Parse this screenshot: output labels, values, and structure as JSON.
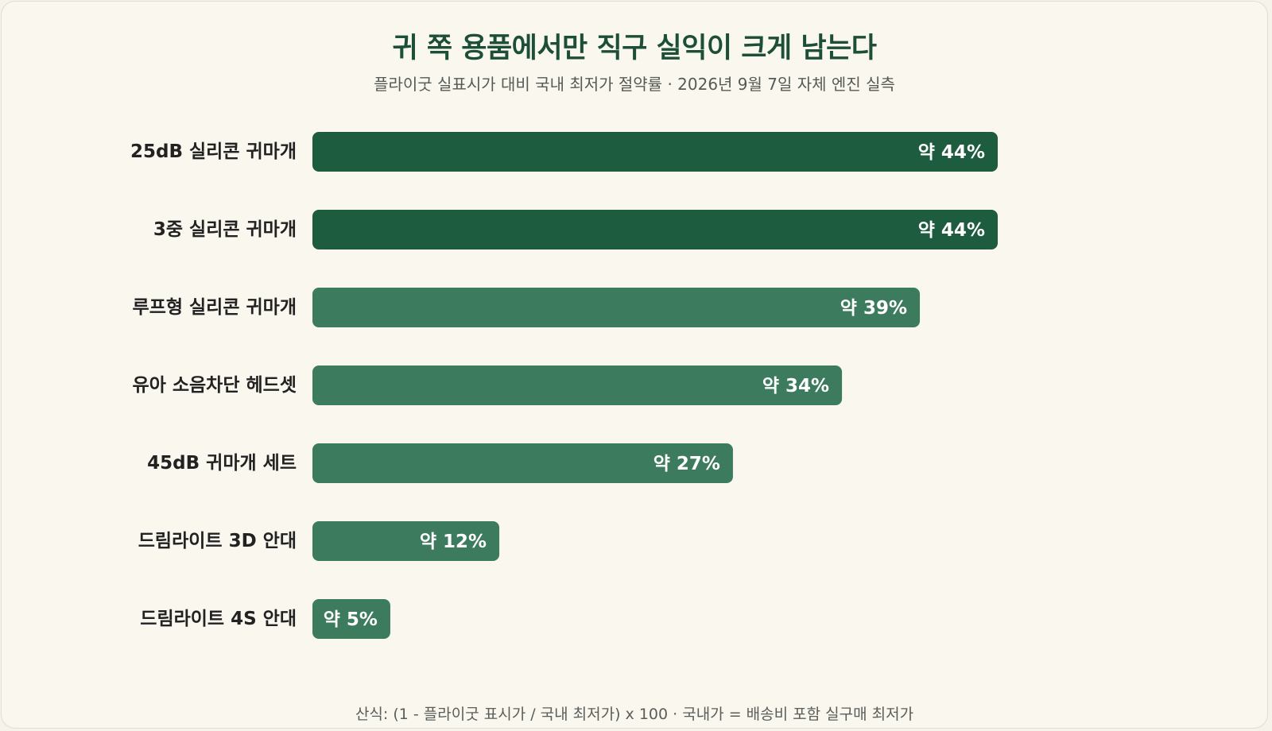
{
  "chart_data": {
    "type": "bar",
    "orientation": "horizontal",
    "title": "귀 쪽 용품에서만 직구 실익이 크게 남는다",
    "subtitle": "플라이굿 실표시가 대비 국내 최저가 절약률 · 2026년 9월 7일 자체 엔진 실측",
    "footnote": "산식: (1 - 플라이굿 표시가 / 국내 최저가) x 100 · 국내가 = 배송비 포함 실구매 최저가",
    "categories": [
      "25dB 실리콘 귀마개",
      "3중 실리콘 귀마개",
      "루프형 실리콘 귀마개",
      "유아 소음차단 헤드셋",
      "45dB 귀마개 세트",
      "드림라이트 3D 안대",
      "드림라이트 4S 안대"
    ],
    "values": [
      44,
      44,
      39,
      34,
      27,
      12,
      5
    ],
    "value_labels": [
      "약 44%",
      "약 44%",
      "약 39%",
      "약 34%",
      "약 27%",
      "약 12%",
      "약 5%"
    ],
    "xlim": [
      0,
      44
    ],
    "grid": false,
    "legend": "none",
    "colors": {
      "highlight": "#1e5c40",
      "default": "#3d7b5f",
      "highlight_threshold": 44
    }
  }
}
